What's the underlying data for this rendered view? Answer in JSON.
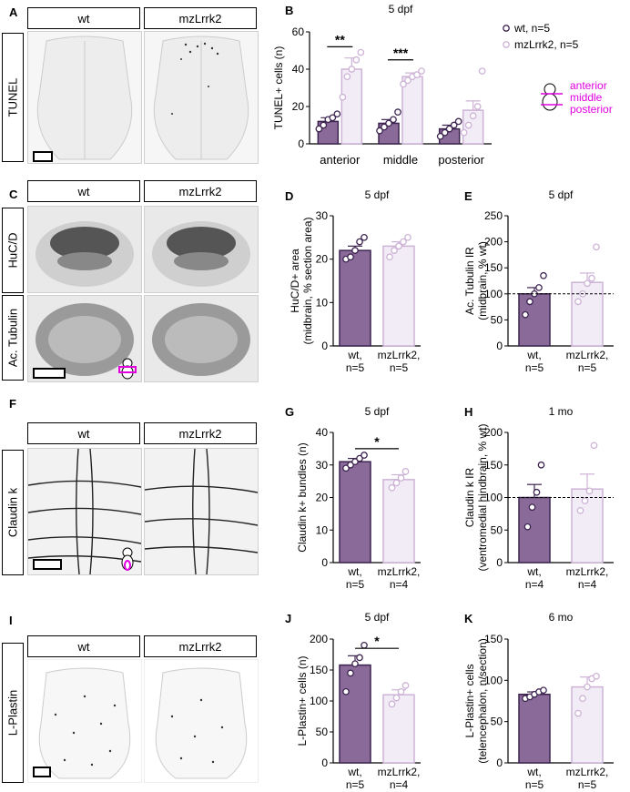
{
  "colors": {
    "wt": "#8a6a98",
    "wt_edge": "#3d2450",
    "mz": "#f1ecf6",
    "mz_edge": "#cdb3d6",
    "magenta": "#e000e0"
  },
  "panels": {
    "A": {
      "letter": "A",
      "side": "TUNEL",
      "wt": "wt",
      "mz": "mzLrrk2"
    },
    "C": {
      "letter": "C",
      "side1": "HuC/D",
      "side2": "Ac. Tubulin",
      "wt": "wt",
      "mz": "mzLrrk2"
    },
    "F": {
      "letter": "F",
      "side": "Claudin k",
      "wt": "wt",
      "mz": "mzLrrk2"
    },
    "I": {
      "letter": "I",
      "side": "L-Plastin",
      "wt": "wt",
      "mz": "mzLrrk2"
    }
  },
  "chart_data": [
    {
      "id": "B",
      "letter": "B",
      "type": "bar",
      "title": "5 dpf",
      "ylabel": "TUNEL+ cells (n)",
      "ylim": [
        0,
        60
      ],
      "yticks": [
        0,
        20,
        40,
        60
      ],
      "categories": [
        "anterior",
        "middle",
        "posterior"
      ],
      "legend": [
        "wt, n=5",
        "mzLrrk2, n=5"
      ],
      "region_labels": [
        "anterior",
        "middle",
        "posterior"
      ],
      "series": [
        {
          "name": "wt, n=5",
          "values": [
            12,
            11,
            8
          ],
          "errors": [
            2,
            2,
            2
          ],
          "points": [
            [
              8,
              10,
              13,
              14,
              16
            ],
            [
              7,
              9,
              11,
              13,
              17
            ],
            [
              4,
              6,
              8,
              10,
              12
            ]
          ]
        },
        {
          "name": "mzLrrk2, n=5",
          "values": [
            40,
            36,
            18
          ],
          "errors": [
            6,
            2,
            5
          ],
          "points": [
            [
              25,
              36,
              40,
              45,
              49
            ],
            [
              32,
              34,
              36,
              37,
              39
            ],
            [
              6,
              10,
              15,
              20,
              39
            ]
          ]
        }
      ],
      "significance": [
        {
          "category": 0,
          "label": "**",
          "y": 52
        },
        {
          "category": 1,
          "label": "***",
          "y": 45
        }
      ]
    },
    {
      "id": "D",
      "letter": "D",
      "type": "bar",
      "title": "5 dpf",
      "ylabel": "HuC/D+ area (midbrain, % section area)",
      "ylim": [
        0,
        30
      ],
      "yticks": [
        0,
        10,
        20,
        30
      ],
      "categories": [
        "wt, n=5",
        "mzLrrk2, n=5"
      ],
      "values": [
        22,
        23
      ],
      "errors": [
        1,
        1
      ],
      "points": [
        [
          20,
          20.5,
          22,
          24,
          25
        ],
        [
          20.5,
          22,
          23,
          24,
          25
        ]
      ]
    },
    {
      "id": "E",
      "letter": "E",
      "type": "bar",
      "title": "5 dpf",
      "ylabel": "Ac. Tubulin IR (midbrain, % wt)",
      "ylim": [
        0,
        250
      ],
      "yticks": [
        0,
        50,
        100,
        150,
        200,
        250
      ],
      "categories": [
        "wt, n=5",
        "mzLrrk2, n=5"
      ],
      "values": [
        100,
        122
      ],
      "errors": [
        12,
        18
      ],
      "points": [
        [
          60,
          85,
          100,
          112,
          135
        ],
        [
          85,
          100,
          120,
          130,
          190
        ]
      ],
      "refline": 100
    },
    {
      "id": "G",
      "letter": "G",
      "type": "bar",
      "title": "5 dpf",
      "ylabel": "Claudin k+ bundles (n)",
      "ylim": [
        0,
        40
      ],
      "yticks": [
        0,
        10,
        20,
        30,
        40
      ],
      "categories": [
        "wt, n=5",
        "mzLrrk2, n=4"
      ],
      "values": [
        31,
        25.5
      ],
      "errors": [
        1,
        1.5
      ],
      "points": [
        [
          29,
          30,
          31,
          32,
          33
        ],
        [
          23,
          24.5,
          26,
          28
        ]
      ],
      "significance": [
        {
          "between": [
            0,
            1
          ],
          "label": "*",
          "y": 35
        }
      ]
    },
    {
      "id": "H",
      "letter": "H",
      "type": "bar",
      "title": "1 mo",
      "ylabel": "Claudin k IR (ventromedial hindbrain, % wt)",
      "ylim": [
        0,
        200
      ],
      "yticks": [
        0,
        50,
        100,
        150,
        200
      ],
      "categories": [
        "wt, n=4",
        "mzLrrk2, n=4"
      ],
      "values": [
        100,
        113
      ],
      "errors": [
        20,
        23
      ],
      "points": [
        [
          55,
          85,
          108,
          150
        ],
        [
          80,
          95,
          110,
          180
        ]
      ],
      "refline": 100
    },
    {
      "id": "J",
      "letter": "J",
      "type": "bar",
      "title": "5 dpf",
      "ylabel": "L-Plastin+ cells (n)",
      "ylim": [
        0,
        200
      ],
      "yticks": [
        0,
        50,
        100,
        150,
        200
      ],
      "categories": [
        "wt, n=5",
        "mzLrrk2, n=4"
      ],
      "values": [
        158,
        110
      ],
      "errors": [
        15,
        8
      ],
      "points": [
        [
          115,
          145,
          160,
          170,
          190
        ],
        [
          95,
          105,
          115,
          125
        ]
      ],
      "significance": [
        {
          "between": [
            0,
            1
          ],
          "label": "*",
          "y": 185
        }
      ]
    },
    {
      "id": "K",
      "letter": "K",
      "type": "bar",
      "title": "6 mo",
      "ylabel": "L-Plastin+ cells (telencephalon, n/section)",
      "ylim": [
        0,
        150
      ],
      "yticks": [
        0,
        50,
        100,
        150
      ],
      "categories": [
        "wt, n=5",
        "mzLrrk2, n=5"
      ],
      "values": [
        83,
        92
      ],
      "errors": [
        3,
        12
      ],
      "points": [
        [
          78,
          80,
          83,
          86,
          88
        ],
        [
          60,
          78,
          92,
          102,
          105
        ]
      ]
    }
  ]
}
